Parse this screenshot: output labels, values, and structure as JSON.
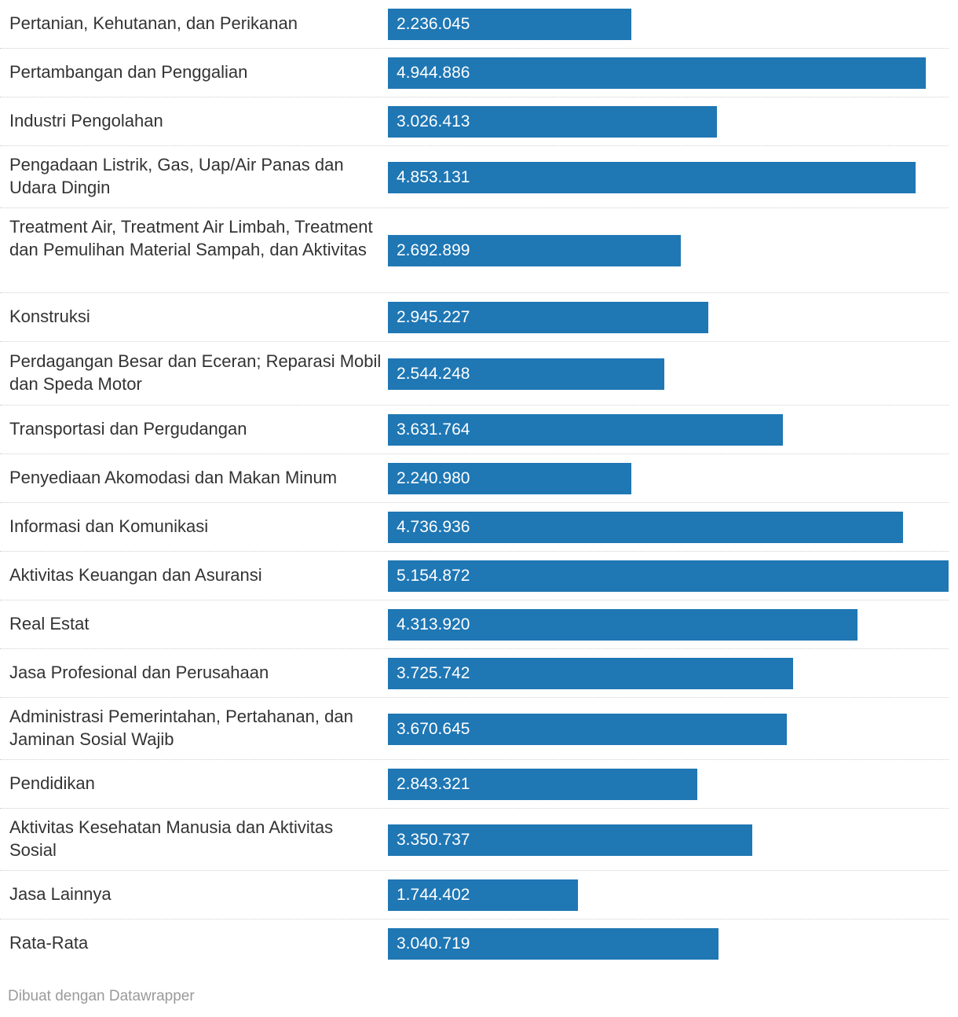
{
  "chart_data": {
    "type": "bar",
    "orientation": "horizontal",
    "bar_color": "#1f77b4",
    "value_label_color": "#ffffff",
    "categories": [
      "Pertanian, Kehutanan, dan Perikanan",
      "Pertambangan dan Penggalian",
      "Industri Pengolahan",
      "Pengadaan Listrik, Gas, Uap/Air Panas dan Udara Dingin",
      "Treatment Air, Treatment Air Limbah, Treatment dan Pemulihan Material Sampah, dan Aktivitas",
      "Konstruksi",
      "Perdagangan Besar dan Eceran; Reparasi Mobil dan Speda Motor",
      "Transportasi dan Pergudangan",
      "Penyediaan Akomodasi dan Makan Minum",
      "Informasi dan Komunikasi",
      "Aktivitas Keuangan dan Asuransi",
      "Real Estat",
      "Jasa Profesional dan Perusahaan",
      "Administrasi Pemerintahan, Pertahanan, dan Jaminan Sosial Wajib",
      "Pendidikan",
      "Aktivitas Kesehatan Manusia dan Aktivitas Sosial",
      "Jasa Lainnya",
      "Rata-Rata"
    ],
    "values": [
      2236045,
      4944886,
      3026413,
      4853131,
      2692899,
      2945227,
      2544248,
      3631764,
      2240980,
      4736936,
      5154872,
      4313920,
      3725742,
      3670645,
      2843321,
      3350737,
      1744402,
      3040719
    ],
    "value_labels": [
      "2.236.045",
      "4.944.886",
      "3.026.413",
      "4.853.131",
      "2.692.899",
      "2.945.227",
      "2.544.248",
      "3.631.764",
      "2.240.980",
      "4.736.936",
      "5.154.872",
      "4.313.920",
      "3.725.742",
      "3.670.645",
      "2.843.321",
      "3.350.737",
      "1.744.402",
      "3.040.719"
    ],
    "xlim": [
      0,
      5154872
    ],
    "grid": false,
    "legend": "none"
  },
  "footer": {
    "credit": "Dibuat dengan Datawrapper"
  }
}
